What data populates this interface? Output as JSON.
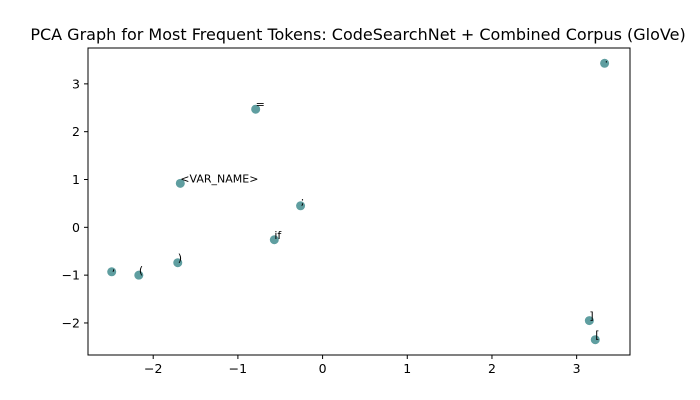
{
  "chart_data": {
    "type": "scatter",
    "title": "PCA Graph for Most Frequent Tokens: CodeSearchNet + Combined Corpus (GloVe)",
    "xlabel": "",
    "ylabel": "",
    "xlim": [
      -2.77,
      3.63
    ],
    "ylim": [
      -2.67,
      3.75
    ],
    "xticks": [
      -2,
      -1,
      0,
      1,
      2,
      3
    ],
    "yticks": [
      -2,
      -1,
      0,
      1,
      2,
      3
    ],
    "tick_labels_x": [
      "−2",
      "−1",
      "0",
      "1",
      "2",
      "3"
    ],
    "tick_labels_y": [
      "−2",
      "−1",
      "0",
      "1",
      "2",
      "3"
    ],
    "grid": false,
    "marker_color": "#5f9ea0",
    "points": [
      {
        "x": 3.33,
        "y": 3.43,
        "label": "."
      },
      {
        "x": -0.79,
        "y": 2.47,
        "label": "="
      },
      {
        "x": -1.68,
        "y": 0.92,
        "label": "<VAR_NAME>"
      },
      {
        "x": -0.26,
        "y": 0.45,
        "label": ";"
      },
      {
        "x": -0.57,
        "y": -0.26,
        "label": "if"
      },
      {
        "x": -1.71,
        "y": -0.74,
        "label": ")"
      },
      {
        "x": -2.49,
        "y": -0.93,
        "label": ","
      },
      {
        "x": -2.17,
        "y": -1.0,
        "label": "("
      },
      {
        "x": 3.15,
        "y": -1.95,
        "label": "]"
      },
      {
        "x": 3.22,
        "y": -2.35,
        "label": "["
      }
    ]
  }
}
